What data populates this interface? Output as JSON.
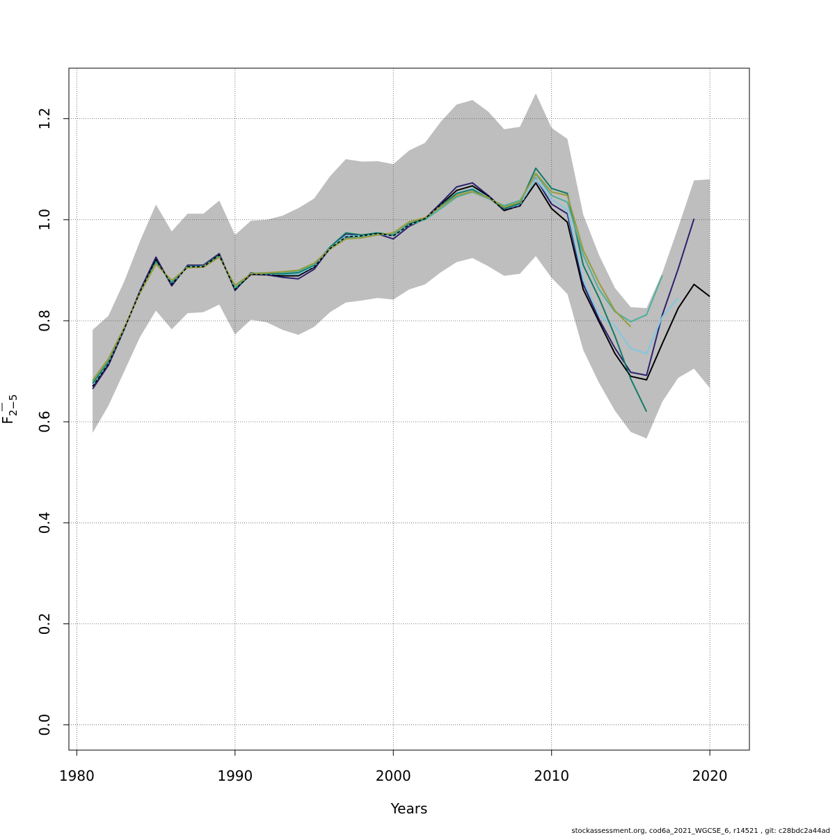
{
  "chart_data": {
    "type": "line",
    "xlabel": "Years",
    "ylabel_main": "F",
    "ylabel_sub": "2−5",
    "xlim": [
      1979.5,
      2022.5
    ],
    "ylim": [
      -0.05,
      1.3
    ],
    "x_ticks": [
      1980,
      1990,
      2000,
      2010,
      2020
    ],
    "y_ticks": [
      0.0,
      0.2,
      0.4,
      0.6,
      0.8,
      1.0,
      1.2
    ],
    "y_tick_labels": [
      "0.0",
      "0.2",
      "0.4",
      "0.6",
      "0.8",
      "1.0",
      "1.2"
    ],
    "grid": true,
    "band_color": "#bebebe",
    "confidence_band": {
      "x": [
        1981,
        1982,
        1983,
        1984,
        1985,
        1986,
        1987,
        1988,
        1989,
        1990,
        1991,
        1992,
        1993,
        1994,
        1995,
        1996,
        1997,
        1998,
        1999,
        2000,
        2001,
        2002,
        2003,
        2004,
        2005,
        2006,
        2007,
        2008,
        2009,
        2010,
        2011,
        2012,
        2013,
        2014,
        2015,
        2016,
        2017,
        2018,
        2019,
        2020
      ],
      "upper": [
        0.782,
        0.81,
        0.878,
        0.958,
        1.03,
        0.977,
        1.012,
        1.012,
        1.038,
        0.97,
        0.998,
        1.0,
        1.008,
        1.023,
        1.042,
        1.086,
        1.12,
        1.115,
        1.116,
        1.11,
        1.137,
        1.152,
        1.194,
        1.228,
        1.237,
        1.214,
        1.179,
        1.184,
        1.25,
        1.182,
        1.16,
        1.01,
        0.93,
        0.865,
        0.827,
        0.825,
        0.895,
        0.985,
        1.078,
        1.08
      ],
      "lower": [
        0.578,
        0.632,
        0.7,
        0.768,
        0.82,
        0.783,
        0.815,
        0.817,
        0.832,
        0.773,
        0.802,
        0.797,
        0.782,
        0.772,
        0.788,
        0.817,
        0.836,
        0.84,
        0.845,
        0.842,
        0.862,
        0.872,
        0.896,
        0.916,
        0.924,
        0.908,
        0.889,
        0.893,
        0.928,
        0.885,
        0.853,
        0.742,
        0.677,
        0.622,
        0.58,
        0.567,
        0.64,
        0.687,
        0.705,
        0.667
      ]
    },
    "series": [
      {
        "color": "#000000",
        "dashed": false,
        "x": [
          1981,
          1982,
          1983,
          1984,
          1985,
          1986,
          1987,
          1988,
          1989,
          1990,
          1991,
          1992,
          1993,
          1994,
          1995,
          1996,
          1997,
          1998,
          1999,
          2000,
          2001,
          2002,
          2003,
          2004,
          2005,
          2006,
          2007,
          2008,
          2009,
          2010,
          2011,
          2012,
          2013,
          2014,
          2015,
          2016,
          2017,
          2018,
          2019,
          2020
        ],
        "y": [
          0.67,
          0.715,
          0.784,
          0.858,
          0.921,
          0.872,
          0.907,
          0.907,
          0.93,
          0.862,
          0.892,
          0.891,
          0.889,
          0.889,
          0.906,
          0.943,
          0.966,
          0.968,
          0.973,
          0.968,
          0.99,
          1.002,
          1.03,
          1.058,
          1.067,
          1.047,
          1.018,
          1.028,
          1.073,
          1.022,
          0.995,
          0.862,
          0.798,
          0.735,
          0.69,
          0.683,
          0.755,
          0.825,
          0.872,
          0.848
        ]
      },
      {
        "color": "#2c1f6e",
        "dashed": false,
        "x": [
          1981,
          1982,
          1983,
          1984,
          1985,
          1986,
          1987,
          1988,
          1989,
          1990,
          1991,
          1992,
          1993,
          1994,
          1995,
          1996,
          1997,
          1998,
          1999,
          2000,
          2001,
          2002,
          2003,
          2004,
          2005,
          2006,
          2007,
          2008,
          2009,
          2010,
          2011,
          2012,
          2013,
          2014,
          2015,
          2016,
          2017,
          2018,
          2019
        ],
        "y": [
          0.665,
          0.712,
          0.783,
          0.86,
          0.926,
          0.869,
          0.91,
          0.91,
          0.933,
          0.86,
          0.895,
          0.891,
          0.886,
          0.883,
          0.902,
          0.944,
          0.972,
          0.969,
          0.972,
          0.962,
          0.987,
          1.002,
          1.033,
          1.065,
          1.073,
          1.048,
          1.02,
          1.027,
          1.082,
          1.031,
          1.012,
          0.872,
          0.803,
          0.746,
          0.698,
          0.692,
          0.812,
          0.903,
          1.002
        ]
      },
      {
        "color": "#7ec8e3",
        "dashed": false,
        "x": [
          1981,
          1982,
          1983,
          1984,
          1985,
          1986,
          1987,
          1988,
          1989,
          1990,
          1991,
          1992,
          1993,
          1994,
          1995,
          1996,
          1997,
          1998,
          1999,
          2000,
          2001,
          2002,
          2003,
          2004,
          2005,
          2006,
          2007,
          2008,
          2009,
          2010,
          2011,
          2012,
          2013,
          2014,
          2015,
          2016,
          2017,
          2018
        ],
        "y": [
          0.672,
          0.718,
          0.784,
          0.858,
          0.917,
          0.874,
          0.906,
          0.906,
          0.928,
          0.864,
          0.893,
          0.893,
          0.892,
          0.892,
          0.908,
          0.944,
          0.968,
          0.968,
          0.972,
          0.968,
          0.99,
          1.002,
          1.028,
          1.052,
          1.062,
          1.044,
          1.022,
          1.03,
          1.081,
          1.04,
          1.02,
          0.88,
          0.81,
          0.79,
          0.745,
          0.735,
          0.808,
          0.845
        ]
      },
      {
        "color": "#117a65",
        "dashed": false,
        "x": [
          1981,
          1982,
          1983,
          1984,
          1985,
          1986,
          1987,
          1988,
          1989,
          1990,
          1991,
          1992,
          1993,
          1994,
          1995,
          1996,
          1997,
          1998,
          1999,
          2000,
          2001,
          2002,
          2003,
          2004,
          2005,
          2006,
          2007,
          2008,
          2009,
          2010,
          2011,
          2012,
          2013,
          2014,
          2015,
          2016
        ],
        "y": [
          0.676,
          0.72,
          0.785,
          0.857,
          0.917,
          0.875,
          0.908,
          0.908,
          0.93,
          0.863,
          0.894,
          0.894,
          0.893,
          0.895,
          0.91,
          0.946,
          0.974,
          0.97,
          0.974,
          0.97,
          0.992,
          1.002,
          1.027,
          1.052,
          1.06,
          1.043,
          1.022,
          1.032,
          1.102,
          1.062,
          1.052,
          0.91,
          0.845,
          0.77,
          0.685,
          0.62
        ]
      },
      {
        "color": "#4daf9c",
        "dashed": false,
        "x": [
          1981,
          1982,
          1983,
          1984,
          1985,
          1986,
          1987,
          1988,
          1989,
          1990,
          1991,
          1992,
          1993,
          1994,
          1995,
          1996,
          1997,
          1998,
          1999,
          2000,
          2001,
          2002,
          2003,
          2004,
          2005,
          2006,
          2007,
          2008,
          2009,
          2010,
          2011,
          2012,
          2013,
          2014,
          2015,
          2016,
          2017
        ],
        "y": [
          0.68,
          0.723,
          0.786,
          0.856,
          0.914,
          0.878,
          0.907,
          0.908,
          0.928,
          0.866,
          0.894,
          0.895,
          0.896,
          0.898,
          0.912,
          0.944,
          0.964,
          0.966,
          0.97,
          0.972,
          0.99,
          1.0,
          1.022,
          1.045,
          1.055,
          1.042,
          1.028,
          1.038,
          1.09,
          1.048,
          1.035,
          0.93,
          0.862,
          0.818,
          0.798,
          0.812,
          0.89
        ]
      },
      {
        "color": "#9a9a3a",
        "dashed": false,
        "x": [
          1981,
          1982,
          1983,
          1984,
          1985,
          1986,
          1987,
          1988,
          1989,
          1990,
          1991,
          1992,
          1993,
          1994,
          1995,
          1996,
          1997,
          1998,
          1999,
          2000,
          2001,
          2002,
          2003,
          2004,
          2005,
          2006,
          2007,
          2008,
          2009,
          2010,
          2011,
          2012,
          2013,
          2014,
          2015
        ],
        "y": [
          0.682,
          0.725,
          0.787,
          0.855,
          0.912,
          0.88,
          0.905,
          0.906,
          0.926,
          0.87,
          0.893,
          0.895,
          0.897,
          0.9,
          0.914,
          0.942,
          0.962,
          0.964,
          0.97,
          0.974,
          0.996,
          1.004,
          1.026,
          1.048,
          1.056,
          1.044,
          1.025,
          1.035,
          1.092,
          1.055,
          1.048,
          0.94,
          0.875,
          0.82,
          0.788
        ]
      },
      {
        "color": "#000000",
        "dashed": true,
        "x": [
          1981,
          1982,
          1983,
          1984,
          1985,
          1986,
          1987,
          1988,
          1989,
          1990,
          1991,
          1992,
          1993,
          1994,
          1995,
          1996,
          1997,
          1998,
          1999,
          2000,
          2001,
          2002,
          2003,
          2004,
          2005,
          2006,
          2007,
          2008,
          2009,
          2010,
          2011,
          2012,
          2013,
          2014,
          2015,
          2016,
          2017,
          2018,
          2019,
          2020
        ],
        "y": [
          0.67,
          0.715,
          0.784,
          0.858,
          0.921,
          0.872,
          0.907,
          0.907,
          0.93,
          0.862,
          0.892,
          0.891,
          0.889,
          0.889,
          0.906,
          0.943,
          0.966,
          0.968,
          0.973,
          0.968,
          0.99,
          1.002,
          1.03,
          1.058,
          1.067,
          1.047,
          1.018,
          1.028,
          1.073,
          1.022,
          0.995,
          0.862,
          0.798,
          0.735,
          0.69,
          0.683,
          0.755,
          0.825,
          0.872,
          0.848
        ]
      }
    ]
  },
  "footer": "stockassessment.org, cod6a_2021_WGCSE_6, r14521 , git: c28bdc2a44ad"
}
